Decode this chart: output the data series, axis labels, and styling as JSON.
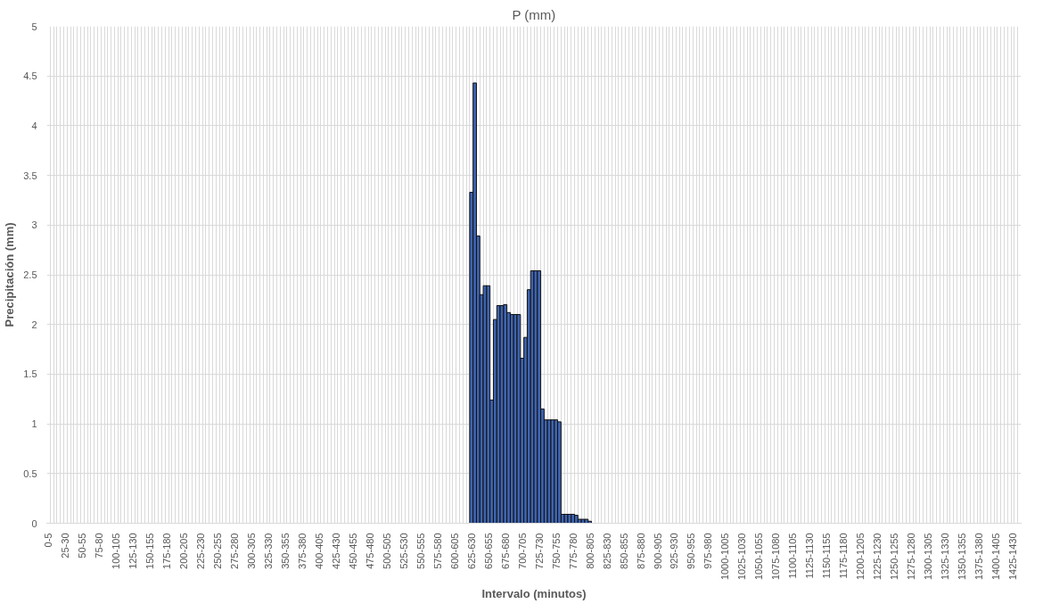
{
  "chart_data": {
    "type": "bar",
    "title": "P (mm)",
    "xlabel": "Intervalo (minutos)",
    "ylabel": "Precipitación (mm)",
    "categories": [
      "0-5",
      null,
      null,
      null,
      null,
      "25-30",
      null,
      null,
      null,
      null,
      "50-55",
      null,
      null,
      null,
      null,
      "75-80",
      null,
      null,
      null,
      null,
      "100-105",
      null,
      null,
      null,
      null,
      "125-130",
      null,
      null,
      null,
      null,
      "150-155",
      null,
      null,
      null,
      null,
      "175-180",
      null,
      null,
      null,
      null,
      "200-205",
      null,
      null,
      null,
      null,
      "225-230",
      null,
      null,
      null,
      null,
      "250-255",
      null,
      null,
      null,
      null,
      "275-280",
      null,
      null,
      null,
      null,
      "300-305",
      null,
      null,
      null,
      null,
      "325-330",
      null,
      null,
      null,
      null,
      "350-355",
      null,
      null,
      null,
      null,
      "375-380",
      null,
      null,
      null,
      null,
      "400-405",
      null,
      null,
      null,
      null,
      "425-430",
      null,
      null,
      null,
      null,
      "450-455",
      null,
      null,
      null,
      null,
      "475-480",
      null,
      null,
      null,
      null,
      "500-505",
      null,
      null,
      null,
      null,
      "525-530",
      null,
      null,
      null,
      null,
      "550-555",
      null,
      null,
      null,
      null,
      "575-580",
      null,
      null,
      null,
      null,
      "600-605",
      null,
      null,
      null,
      null,
      "625-630",
      null,
      null,
      null,
      null,
      "650-655",
      null,
      null,
      null,
      null,
      "675-680",
      null,
      null,
      null,
      null,
      "700-705",
      null,
      null,
      null,
      null,
      "725-730",
      null,
      null,
      null,
      null,
      "750-755",
      null,
      null,
      null,
      null,
      "775-780",
      null,
      null,
      null,
      null,
      "800-805",
      null,
      null,
      null,
      null,
      "825-830",
      null,
      null,
      null,
      null,
      "850-855",
      null,
      null,
      null,
      null,
      "875-880",
      null,
      null,
      null,
      null,
      "900-905",
      null,
      null,
      null,
      null,
      "925-930",
      null,
      null,
      null,
      null,
      "950-955",
      null,
      null,
      null,
      null,
      "975-980",
      null,
      null,
      null,
      null,
      "1000-1005",
      null,
      null,
      null,
      null,
      "1025-1030",
      null,
      null,
      null,
      null,
      "1050-1055",
      null,
      null,
      null,
      null,
      "1075-1080",
      null,
      null,
      null,
      null,
      "1100-1105",
      null,
      null,
      null,
      null,
      "1125-1130",
      null,
      null,
      null,
      null,
      "1150-1155",
      null,
      null,
      null,
      null,
      "1175-1180",
      null,
      null,
      null,
      null,
      "1200-1205",
      null,
      null,
      null,
      null,
      "1225-1230",
      null,
      null,
      null,
      null,
      "1250-1255",
      null,
      null,
      null,
      null,
      "1275-1280",
      null,
      null,
      null,
      null,
      "1300-1305",
      null,
      null,
      null,
      null,
      "1325-1330",
      null,
      null,
      null,
      null,
      "1350-1355",
      null,
      null,
      null,
      null,
      "1375-1380",
      null,
      null,
      null,
      null,
      "1400-1405",
      null,
      null,
      null,
      null,
      "1425-1430",
      null,
      null
    ],
    "values": [
      0,
      0,
      0,
      0,
      0,
      0,
      0,
      0,
      0,
      0,
      0,
      0,
      0,
      0,
      0,
      0,
      0,
      0,
      0,
      0,
      0,
      0,
      0,
      0,
      0,
      0,
      0,
      0,
      0,
      0,
      0,
      0,
      0,
      0,
      0,
      0,
      0,
      0,
      0,
      0,
      0,
      0,
      0,
      0,
      0,
      0,
      0,
      0,
      0,
      0,
      0,
      0,
      0,
      0,
      0,
      0,
      0,
      0,
      0,
      0,
      0,
      0,
      0,
      0,
      0,
      0,
      0,
      0,
      0,
      0,
      0,
      0,
      0,
      0,
      0,
      0,
      0,
      0,
      0,
      0,
      0,
      0,
      0,
      0,
      0,
      0,
      0,
      0,
      0,
      0,
      0,
      0,
      0,
      0,
      0,
      0,
      0,
      0,
      0,
      0,
      0,
      0,
      0,
      0,
      0,
      0,
      0,
      0,
      0,
      0,
      0,
      0,
      0,
      0,
      0,
      0,
      0,
      0,
      0,
      0,
      0,
      0,
      0,
      0,
      0,
      3.33,
      4.43,
      2.89,
      2.3,
      2.39,
      2.39,
      1.24,
      2.05,
      2.19,
      2.19,
      2.2,
      2.12,
      2.1,
      2.1,
      2.1,
      1.66,
      1.87,
      2.35,
      2.54,
      2.54,
      2.54,
      1.15,
      1.04,
      1.04,
      1.04,
      1.04,
      1.02,
      0.09,
      0.09,
      0.09,
      0.09,
      0.08,
      0.04,
      0.04,
      0.04,
      0.02,
      0,
      0,
      0,
      0,
      0,
      0,
      0,
      0,
      0,
      0,
      0,
      0,
      0,
      0,
      0,
      0,
      0,
      0,
      0,
      0,
      0,
      0,
      0,
      0,
      0,
      0,
      0,
      0,
      0,
      0,
      0,
      0,
      0,
      0,
      0,
      0,
      0,
      0,
      0,
      0,
      0,
      0,
      0,
      0,
      0,
      0,
      0,
      0,
      0,
      0,
      0,
      0,
      0,
      0,
      0,
      0,
      0,
      0,
      0,
      0,
      0,
      0,
      0,
      0,
      0,
      0,
      0,
      0,
      0,
      0,
      0,
      0,
      0,
      0,
      0,
      0,
      0,
      0,
      0,
      0,
      0,
      0,
      0,
      0,
      0,
      0,
      0,
      0,
      0,
      0,
      0,
      0,
      0,
      0,
      0,
      0,
      0,
      0,
      0,
      0,
      0,
      0,
      0,
      0,
      0,
      0,
      0,
      0,
      0,
      0,
      0,
      0,
      0,
      0,
      0,
      0,
      0,
      0,
      0,
      0,
      0,
      0,
      0,
      0,
      0,
      0,
      0
    ],
    "color": "#3e64b0",
    "ylim": [
      0,
      5
    ],
    "yticks": [
      0,
      0.5,
      1,
      1.5,
      2,
      2.5,
      3,
      3.5,
      4,
      4.5,
      5
    ],
    "grid": true
  }
}
